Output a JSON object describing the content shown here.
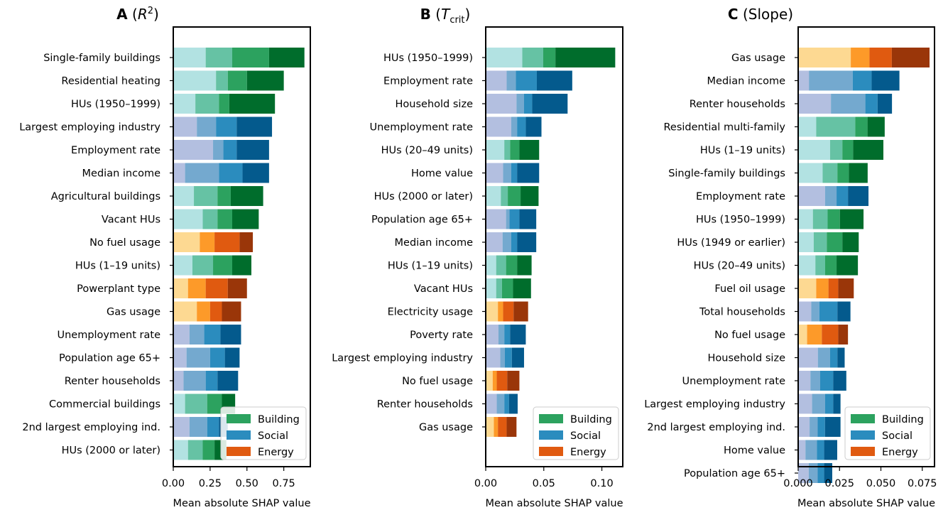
{
  "palette": {
    "Building": [
      "#b2e2e2",
      "#66c2a4",
      "#2ca25f",
      "#006d2c"
    ],
    "Social": [
      "#b3bfe0",
      "#74a9cf",
      "#2b8cbe",
      "#045a8d"
    ],
    "Energy": [
      "#fdd992",
      "#fd9a29",
      "#e05a10",
      "#9a3609"
    ]
  },
  "legend": {
    "labels": [
      "Building",
      "Social",
      "Energy"
    ],
    "colors": [
      "#2ca25f",
      "#2b8cbe",
      "#e05a10"
    ],
    "placement": "lower right"
  },
  "chart_data": [
    {
      "type": "bar",
      "orientation": "horizontal",
      "stacked": true,
      "title_letter": "A",
      "title_text": "(R²)",
      "xlabel": "Mean absolute SHAP value",
      "xlim": [
        0,
        0.93
      ],
      "xticks": [
        0,
        0.25,
        0.5,
        0.75
      ],
      "xtick_labels": [
        "0.00",
        "0.25",
        "0.50",
        "0.75"
      ],
      "series": [
        {
          "label": "Single-family buildings",
          "group": "Building",
          "values": [
            0.22,
            0.18,
            0.25,
            0.24
          ]
        },
        {
          "label": "Residential heating",
          "group": "Building",
          "values": [
            0.29,
            0.08,
            0.13,
            0.25
          ]
        },
        {
          "label": "HUs (1950–1999)",
          "group": "Building",
          "values": [
            0.15,
            0.16,
            0.07,
            0.31
          ]
        },
        {
          "label": "Largest employing industry",
          "group": "Social",
          "values": [
            0.16,
            0.13,
            0.14,
            0.24
          ]
        },
        {
          "label": "Employment rate",
          "group": "Social",
          "values": [
            0.27,
            0.07,
            0.09,
            0.22
          ]
        },
        {
          "label": "Median income",
          "group": "Social",
          "values": [
            0.08,
            0.23,
            0.16,
            0.18
          ]
        },
        {
          "label": "Agricultural buildings",
          "group": "Building",
          "values": [
            0.14,
            0.16,
            0.09,
            0.22
          ]
        },
        {
          "label": "Vacant HUs",
          "group": "Building",
          "values": [
            0.2,
            0.1,
            0.1,
            0.18
          ]
        },
        {
          "label": "No fuel usage",
          "group": "Energy",
          "values": [
            0.18,
            0.1,
            0.17,
            0.09
          ]
        },
        {
          "label": "HUs (1–19 units)",
          "group": "Building",
          "values": [
            0.13,
            0.14,
            0.13,
            0.13
          ]
        },
        {
          "label": "Powerplant type",
          "group": "Energy",
          "values": [
            0.1,
            0.12,
            0.15,
            0.13
          ]
        },
        {
          "label": "Gas usage",
          "group": "Energy",
          "values": [
            0.16,
            0.09,
            0.08,
            0.13
          ]
        },
        {
          "label": "Unemployment rate",
          "group": "Social",
          "values": [
            0.11,
            0.1,
            0.11,
            0.14
          ]
        },
        {
          "label": "Population age 65+",
          "group": "Social",
          "values": [
            0.09,
            0.16,
            0.1,
            0.1
          ]
        },
        {
          "label": "Renter households",
          "group": "Social",
          "values": [
            0.07,
            0.15,
            0.08,
            0.14
          ]
        },
        {
          "label": "Commercial buildings",
          "group": "Building",
          "values": [
            0.08,
            0.15,
            0.1,
            0.09
          ]
        },
        {
          "label": "2nd largest employing ind.",
          "group": "Social",
          "values": [
            0.11,
            0.12,
            0.08,
            0.06
          ]
        },
        {
          "label": "HUs (2000 or later)",
          "group": "Building",
          "values": [
            0.1,
            0.1,
            0.08,
            0.08
          ]
        }
      ]
    },
    {
      "type": "bar",
      "orientation": "horizontal",
      "stacked": true,
      "title_letter": "B",
      "title_text": "(T_crit)",
      "xlabel": "Mean absolute SHAP value",
      "xlim": [
        0,
        0.118
      ],
      "xticks": [
        0,
        0.05,
        0.1
      ],
      "xtick_labels": [
        "0.00",
        "0.05",
        "0.10"
      ],
      "series": [
        {
          "label": "HUs (1950–1999)",
          "group": "Building",
          "values": [
            0.0315,
            0.018,
            0.0105,
            0.0515
          ]
        },
        {
          "label": "Employment rate",
          "group": "Social",
          "values": [
            0.018,
            0.008,
            0.018,
            0.0305
          ]
        },
        {
          "label": "Household size",
          "group": "Social",
          "values": [
            0.0265,
            0.0065,
            0.007,
            0.0305
          ]
        },
        {
          "label": "Unemployment rate",
          "group": "Social",
          "values": [
            0.022,
            0.005,
            0.0075,
            0.0135
          ]
        },
        {
          "label": "HUs (20–49 units)",
          "group": "Building",
          "values": [
            0.016,
            0.005,
            0.008,
            0.017
          ]
        },
        {
          "label": "Home value",
          "group": "Social",
          "values": [
            0.015,
            0.007,
            0.005,
            0.019
          ]
        },
        {
          "label": "HUs (2000 or later)",
          "group": "Building",
          "values": [
            0.013,
            0.006,
            0.011,
            0.0155
          ]
        },
        {
          "label": "Population age 65+",
          "group": "Social",
          "values": [
            0.0175,
            0.003,
            0.0085,
            0.0145
          ]
        },
        {
          "label": "Median income",
          "group": "Social",
          "values": [
            0.0145,
            0.0075,
            0.005,
            0.0165
          ]
        },
        {
          "label": "HUs (1–19 units)",
          "group": "Building",
          "values": [
            0.009,
            0.0085,
            0.0095,
            0.0125
          ]
        },
        {
          "label": "Vacant HUs",
          "group": "Building",
          "values": [
            0.009,
            0.005,
            0.0095,
            0.0155
          ]
        },
        {
          "label": "Electricity usage",
          "group": "Energy",
          "values": [
            0.0105,
            0.0045,
            0.009,
            0.0125
          ]
        },
        {
          "label": "Poverty rate",
          "group": "Social",
          "values": [
            0.011,
            0.005,
            0.005,
            0.0135
          ]
        },
        {
          "label": "Largest employing industry",
          "group": "Social",
          "values": [
            0.0125,
            0.004,
            0.006,
            0.0105
          ]
        },
        {
          "label": "No fuel usage",
          "group": "Energy",
          "values": [
            0.006,
            0.0035,
            0.009,
            0.0105
          ]
        },
        {
          "label": "Renter households",
          "group": "Social",
          "values": [
            0.0095,
            0.0065,
            0.004,
            0.0075
          ]
        },
        {
          "label": "Gas usage",
          "group": "Energy",
          "values": [
            0.007,
            0.0035,
            0.0075,
            0.0085
          ]
        }
      ]
    },
    {
      "type": "bar",
      "orientation": "horizontal",
      "stacked": true,
      "title_letter": "C",
      "title_text": "(Slope)",
      "xlabel": "Mean absolute SHAP value",
      "xlim": [
        0,
        0.0824
      ],
      "xticks": [
        0,
        0.025,
        0.05,
        0.075
      ],
      "xtick_labels": [
        "0.000",
        "0.025",
        "0.050",
        "0.075"
      ],
      "series": [
        {
          "label": "Gas usage",
          "group": "Energy",
          "values": [
            0.0318,
            0.0113,
            0.0135,
            0.0228
          ]
        },
        {
          "label": "Median income",
          "group": "Social",
          "values": [
            0.0065,
            0.0265,
            0.0114,
            0.0168
          ]
        },
        {
          "label": "Renter households",
          "group": "Social",
          "values": [
            0.0198,
            0.0208,
            0.0074,
            0.0087
          ]
        },
        {
          "label": "Residential multi-family",
          "group": "Building",
          "values": [
            0.0109,
            0.0236,
            0.0074,
            0.0104
          ]
        },
        {
          "label": "HUs (1–19 units)",
          "group": "Building",
          "values": [
            0.0193,
            0.0074,
            0.0065,
            0.0183
          ]
        },
        {
          "label": "Single-family buildings",
          "group": "Building",
          "values": [
            0.0148,
            0.0089,
            0.0069,
            0.0114
          ]
        },
        {
          "label": "Employment rate",
          "group": "Social",
          "values": [
            0.0163,
            0.0069,
            0.0069,
            0.0124
          ]
        },
        {
          "label": "HUs (1950–1999)",
          "group": "Building",
          "values": [
            0.0089,
            0.0089,
            0.0074,
            0.0143
          ]
        },
        {
          "label": "HUs (1949 or earlier)",
          "group": "Building",
          "values": [
            0.0094,
            0.0079,
            0.0094,
            0.0099
          ]
        },
        {
          "label": "HUs (20–49 units)",
          "group": "Building",
          "values": [
            0.0104,
            0.0059,
            0.0069,
            0.0129
          ]
        },
        {
          "label": "Fuel oil usage",
          "group": "Energy",
          "values": [
            0.0109,
            0.0074,
            0.0059,
            0.0094
          ]
        },
        {
          "label": "Total households",
          "group": "Social",
          "values": [
            0.0079,
            0.0049,
            0.0109,
            0.0079
          ]
        },
        {
          "label": "No fuel usage",
          "group": "Energy",
          "values": [
            0.0054,
            0.0089,
            0.0099,
            0.0059
          ]
        },
        {
          "label": "Household size",
          "group": "Social",
          "values": [
            0.0119,
            0.0074,
            0.0044,
            0.0044
          ]
        },
        {
          "label": "Unemployment rate",
          "group": "Social",
          "values": [
            0.0074,
            0.0059,
            0.0079,
            0.0079
          ]
        },
        {
          "label": "Largest employing industry",
          "group": "Social",
          "values": [
            0.0084,
            0.0079,
            0.0049,
            0.0044
          ]
        },
        {
          "label": "2nd largest employing ind.",
          "group": "Social",
          "values": [
            0.0069,
            0.0049,
            0.0044,
            0.0094
          ]
        },
        {
          "label": "Home value",
          "group": "Social",
          "values": [
            0.0044,
            0.0069,
            0.0044,
            0.0079
          ]
        },
        {
          "label": "Population age 65+",
          "group": "Social",
          "values": [
            0.0064,
            0.0054,
            0.0039,
            0.0049
          ]
        }
      ]
    }
  ]
}
